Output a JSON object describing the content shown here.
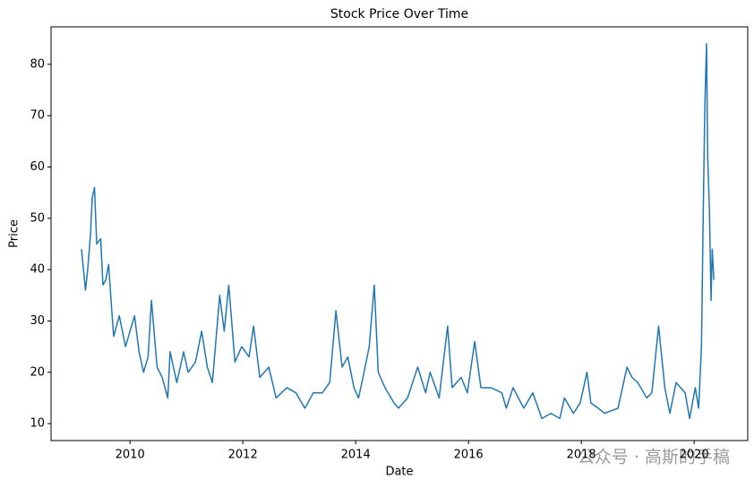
{
  "chart_data": {
    "type": "line",
    "title": "Stock Price Over Time",
    "x_label": "Date",
    "y_label": "Price",
    "x": [
      2009.14,
      2009.21,
      2009.25,
      2009.3,
      2009.33,
      2009.37,
      2009.41,
      2009.48,
      2009.52,
      2009.57,
      2009.62,
      2009.67,
      2009.71,
      2009.81,
      2009.92,
      2010.08,
      2010.16,
      2010.24,
      2010.32,
      2010.38,
      2010.48,
      2010.57,
      2010.67,
      2010.71,
      2010.83,
      2010.95,
      2011.03,
      2011.16,
      2011.27,
      2011.37,
      2011.46,
      2011.59,
      2011.67,
      2011.75,
      2011.86,
      2011.98,
      2012.11,
      2012.19,
      2012.3,
      2012.46,
      2012.59,
      2012.78,
      2012.94,
      2013.1,
      2013.25,
      2013.41,
      2013.54,
      2013.65,
      2013.76,
      2013.86,
      2013.97,
      2014.05,
      2014.13,
      2014.24,
      2014.33,
      2014.4,
      2014.52,
      2014.68,
      2014.76,
      2014.92,
      2015.1,
      2015.24,
      2015.32,
      2015.48,
      2015.63,
      2015.71,
      2015.87,
      2015.98,
      2016.11,
      2016.22,
      2016.4,
      2016.59,
      2016.67,
      2016.79,
      2016.98,
      2017.14,
      2017.3,
      2017.46,
      2017.62,
      2017.7,
      2017.86,
      2017.98,
      2018.1,
      2018.17,
      2018.3,
      2018.41,
      2018.65,
      2018.81,
      2018.9,
      2019.0,
      2019.16,
      2019.25,
      2019.37,
      2019.48,
      2019.57,
      2019.68,
      2019.84,
      2019.92,
      2020.02,
      2020.08,
      2020.13,
      2020.16,
      2020.19,
      2020.22,
      2020.24,
      2020.27,
      2020.3,
      2020.32,
      2020.35
    ],
    "series": [
      {
        "color": "#1f77b4",
        "values": [
          44,
          36,
          40,
          47,
          54,
          56,
          45,
          46,
          37,
          38,
          41,
          33,
          27,
          31,
          25,
          31,
          24,
          20,
          23,
          34,
          21,
          19,
          15,
          24,
          18,
          24,
          20,
          22,
          28,
          21,
          18,
          35,
          28,
          37,
          22,
          25,
          23,
          29,
          19,
          21,
          15,
          17,
          16,
          13,
          16,
          16,
          18,
          32,
          21,
          23,
          17,
          15,
          19,
          25,
          37,
          20,
          17,
          14,
          13,
          15,
          21,
          16,
          20,
          15,
          29,
          17,
          19,
          16,
          26,
          17,
          17,
          16,
          13,
          17,
          13,
          16,
          11,
          12,
          11,
          15,
          12,
          14,
          20,
          14,
          13,
          12,
          13,
          21,
          19,
          18,
          15,
          16,
          29,
          17,
          12,
          18,
          16,
          11,
          17,
          13,
          25,
          50,
          72,
          84,
          62,
          52,
          34,
          44,
          38
        ]
      }
    ],
    "xlim": [
      2008.6,
      2020.95
    ],
    "xticks": [
      2010,
      2012,
      2014,
      2016,
      2018,
      2020
    ],
    "ylim": [
      6.7,
      87.3
    ],
    "yticks": [
      10,
      20,
      30,
      40,
      50,
      60,
      70,
      80
    ],
    "grid": false,
    "watermark": "公众号 · 高斯的手稿"
  }
}
